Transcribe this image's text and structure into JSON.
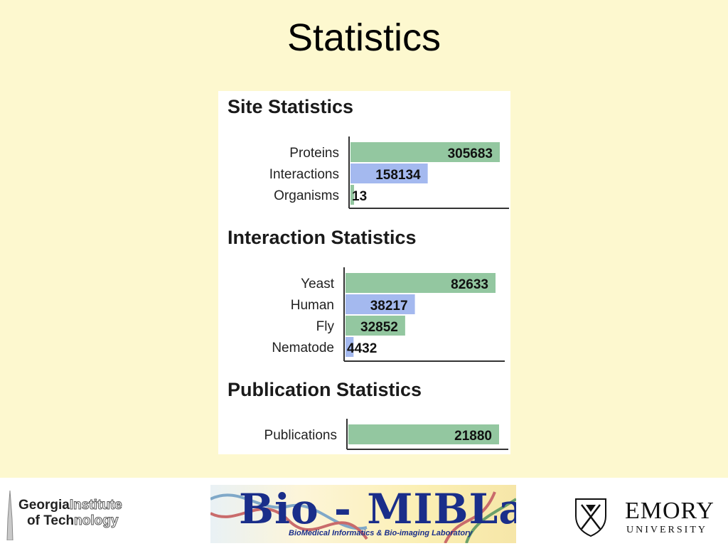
{
  "slide": {
    "title": "Statistics"
  },
  "chart_data": [
    {
      "type": "bar",
      "orientation": "horizontal",
      "title": "Site Statistics",
      "categories": [
        "Proteins",
        "Interactions",
        "Organisms"
      ],
      "values": [
        305683,
        158134,
        13
      ],
      "value_labels": [
        "305683",
        "158134",
        "13"
      ],
      "colors": [
        "#93c7a0",
        "#a4b9ef",
        "#93c7a0"
      ],
      "xlim": [
        0,
        305683
      ],
      "grid": false,
      "legend": "none"
    },
    {
      "type": "bar",
      "orientation": "horizontal",
      "title": "Interaction Statistics",
      "categories": [
        "Yeast",
        "Human",
        "Fly",
        "Nematode"
      ],
      "values": [
        82633,
        38217,
        32852,
        4432
      ],
      "value_labels": [
        "82633",
        "38217",
        "32852",
        "4432"
      ],
      "colors": [
        "#93c7a0",
        "#a4b9ef",
        "#93c7a0",
        "#a4b9ef"
      ],
      "xlim": [
        0,
        82633
      ],
      "grid": false,
      "legend": "none"
    },
    {
      "type": "bar",
      "orientation": "horizontal",
      "title": "Publication Statistics",
      "categories": [
        "Publications"
      ],
      "values": [
        21880
      ],
      "value_labels": [
        "21880"
      ],
      "colors": [
        "#93c7a0"
      ],
      "xlim": [
        0,
        21880
      ],
      "grid": false,
      "legend": "none"
    }
  ],
  "logos": {
    "gt": {
      "line1_bold": "Georgia",
      "line1_light": "Institute",
      "line2_bold": "of Tech",
      "line2_light": "nology",
      "icon": "tech-tower-icon"
    },
    "miblab": {
      "main": "Bio - MIBLab",
      "sub": "BioMedical Informatics & Bio-imaging Laboratory",
      "icon": "dna-helix-icon"
    },
    "emory": {
      "name": "EMORY",
      "sub": "UNIVERSITY",
      "icon": "emory-shield-icon"
    }
  }
}
